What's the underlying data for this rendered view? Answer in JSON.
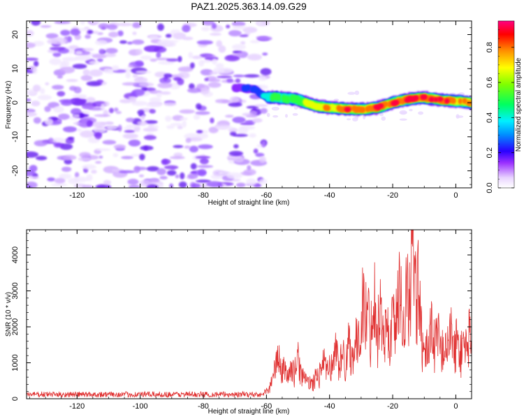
{
  "title": "PAZ1.2025.363.14.09.G29",
  "colors": {
    "snr_line": "#e03030",
    "spectrogram_noise": "#7b2ff7",
    "frame": "#000000"
  },
  "chart_data": [
    {
      "type": "heatmap",
      "name": "spectrogram",
      "xlabel": "Height of straight line (km)",
      "ylabel": "Frequency (Hz)",
      "xlim": [
        -136,
        5
      ],
      "ylim": [
        -25,
        24
      ],
      "xticks": [
        -120,
        -100,
        -80,
        -60,
        -40,
        -20,
        0
      ],
      "xtick_labels": [
        "-120",
        "-100",
        "-80",
        "-60",
        "-40",
        "-20",
        "0"
      ],
      "yticks": [
        -20,
        -10,
        0,
        10,
        20
      ],
      "ytick_labels": [
        "-20",
        "-10",
        "0",
        "10",
        "20"
      ],
      "noise_region_x": [
        -136,
        -60
      ],
      "signal_track": {
        "x": [
          -70,
          -64,
          -60,
          -56,
          -50,
          -45,
          -40,
          -35,
          -30,
          -25,
          -20,
          -15,
          -10,
          -5,
          0,
          5
        ],
        "y": [
          4.5,
          4,
          1.8,
          1.5,
          0.8,
          -0.8,
          -1.5,
          -1.8,
          -2.0,
          -1.5,
          0,
          1,
          1.5,
          0.8,
          0.5,
          0
        ],
        "amplitude": [
          0.2,
          0.25,
          0.5,
          0.55,
          0.6,
          0.75,
          0.8,
          0.85,
          0.9,
          0.88,
          0.9,
          0.95,
          0.92,
          0.9,
          0.85,
          0.85
        ]
      },
      "colorbar": {
        "label": "Normalized spectral amplitude",
        "range": [
          0.0,
          0.95
        ],
        "ticks": [
          0.0,
          0.2,
          0.4,
          0.6,
          0.8
        ],
        "tick_labels": [
          "0.0",
          "0.2",
          "0.4",
          "0.6",
          "0.8"
        ]
      }
    },
    {
      "type": "line",
      "name": "snr",
      "xlabel": "Height of straight line (km)",
      "ylabel": "SNR (10 * v/v)",
      "xlim": [
        -136,
        5
      ],
      "ylim": [
        0,
        4700
      ],
      "xticks": [
        -120,
        -100,
        -80,
        -60,
        -40,
        -20,
        0
      ],
      "xtick_labels": [
        "-120",
        "-100",
        "-80",
        "-60",
        "-40",
        "-20",
        "0"
      ],
      "yticks": [
        0,
        1000,
        2000,
        3000,
        4000
      ],
      "ytick_labels": [
        "0",
        "1000",
        "2000",
        "3000",
        "4000"
      ],
      "envelope": {
        "x": [
          -136,
          -62,
          -60,
          -58,
          -57,
          -55,
          -52,
          -50,
          -48,
          -46,
          -44,
          -42,
          -40,
          -38,
          -36,
          -34,
          -32,
          -30,
          -29,
          -28,
          -26,
          -24,
          -22,
          -20,
          -18,
          -16,
          -14,
          -12,
          -10,
          -8,
          -6,
          -4,
          -2,
          0,
          2,
          5
        ],
        "y": [
          120,
          120,
          250,
          600,
          1500,
          1000,
          900,
          1300,
          700,
          500,
          800,
          1200,
          1000,
          1600,
          1300,
          1800,
          1700,
          2500,
          3800,
          2500,
          3200,
          2800,
          2200,
          2600,
          3500,
          3000,
          4600,
          3800,
          1200,
          2500,
          2000,
          1800,
          2100,
          1900,
          1800,
          2200
        ]
      }
    }
  ]
}
